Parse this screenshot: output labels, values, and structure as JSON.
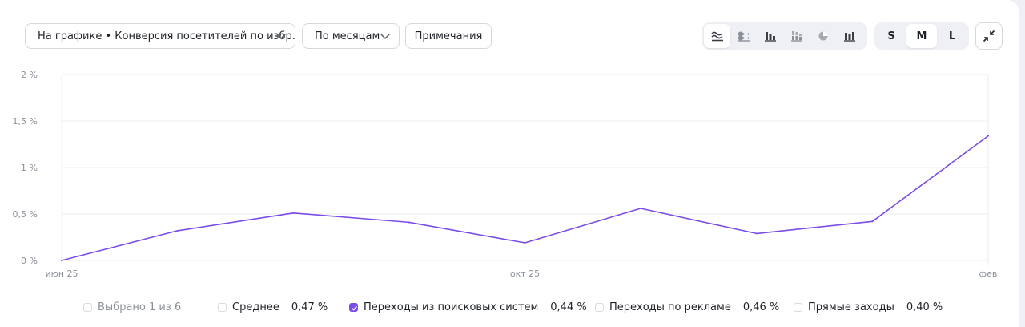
{
  "toolbar": {
    "metric_select": "На графике • Конверсия посетителей по избр…",
    "period_select": "По месяцам",
    "notes_button": "Примечания",
    "view_icons": [
      "line-chart-icon",
      "stacked-area-icon",
      "bar-chart-icon",
      "stacked-bar-icon",
      "pie-chart-icon",
      "columns-icon"
    ],
    "active_view": "line-chart-icon",
    "sizes": [
      "S",
      "M",
      "L"
    ],
    "active_size": "M",
    "collapse_icon": "collapse-arrows-icon"
  },
  "legend": {
    "selected_label": "Выбрано 1 из 6",
    "items": [
      {
        "label": "Среднее",
        "value": "0,47 %",
        "checked": false
      },
      {
        "label": "Переходы из поисковых систем",
        "value": "0,44 %",
        "checked": true
      },
      {
        "label": "Переходы по рекламе",
        "value": "0,46 %",
        "checked": false
      },
      {
        "label": "Прямые заходы",
        "value": "0,40 %",
        "checked": false
      }
    ]
  },
  "chart_data": {
    "type": "line",
    "x": [
      "2025-06",
      "2025-07",
      "2025-08",
      "2025-09",
      "2025-10",
      "2025-11",
      "2025-12",
      "2026-01",
      "2026-02"
    ],
    "x_tick_labels": [
      {
        "x": "2025-06",
        "label": "июн 25"
      },
      {
        "x": "2025-10",
        "label": "окт 25"
      },
      {
        "x": "2026-02",
        "label": "фев"
      }
    ],
    "y_tick_labels": [
      "0 %",
      "0,5 %",
      "1 %",
      "1,5 %",
      "2 %"
    ],
    "y_ticks": [
      0,
      0.5,
      1,
      1.5,
      2
    ],
    "ylim": [
      0,
      2
    ],
    "series": [
      {
        "name": "Переходы из поисковых систем",
        "color": "#7a4de8",
        "values": [
          0,
          0.32,
          0.51,
          0.41,
          0.19,
          0.56,
          0.29,
          0.42,
          1.34
        ]
      }
    ],
    "grid": true,
    "colors": {
      "line": "#7a4de8",
      "grid": "#ebedf0",
      "axis_text": "#8a8f99"
    }
  }
}
